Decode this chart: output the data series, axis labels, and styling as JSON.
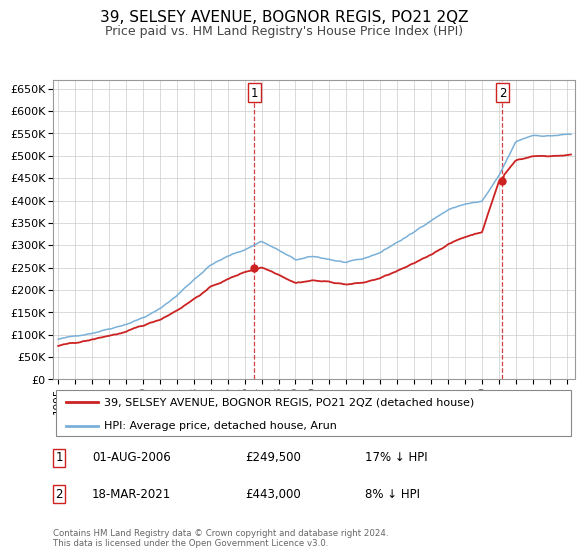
{
  "title": "39, SELSEY AVENUE, BOGNOR REGIS, PO21 2QZ",
  "subtitle": "Price paid vs. HM Land Registry's House Price Index (HPI)",
  "ylim": [
    0,
    670000
  ],
  "yticks": [
    0,
    50000,
    100000,
    150000,
    200000,
    250000,
    300000,
    350000,
    400000,
    450000,
    500000,
    550000,
    600000,
    650000
  ],
  "ytick_labels": [
    "£0",
    "£50K",
    "£100K",
    "£150K",
    "£200K",
    "£250K",
    "£300K",
    "£350K",
    "£400K",
    "£450K",
    "£500K",
    "£550K",
    "£600K",
    "£650K"
  ],
  "xlim_start": 1994.7,
  "xlim_end": 2025.5,
  "xticks": [
    1995,
    1996,
    1997,
    1998,
    1999,
    2000,
    2001,
    2002,
    2003,
    2004,
    2005,
    2006,
    2007,
    2008,
    2009,
    2010,
    2011,
    2012,
    2013,
    2014,
    2015,
    2016,
    2017,
    2018,
    2019,
    2020,
    2021,
    2022,
    2023,
    2024,
    2025
  ],
  "grid_color": "#cccccc",
  "hpi_color": "#7ab0d8",
  "price_color": "#cc2222",
  "sale1_x": 2006.58,
  "sale1_y": 249500,
  "sale1_label": "1",
  "sale1_date": "01-AUG-2006",
  "sale1_price": "£249,500",
  "sale1_hpi": "17% ↓ HPI",
  "sale2_x": 2021.21,
  "sale2_y": 443000,
  "sale2_label": "2",
  "sale2_date": "18-MAR-2021",
  "sale2_price": "£443,000",
  "sale2_hpi": "8% ↓ HPI",
  "legend_line1": "39, SELSEY AVENUE, BOGNOR REGIS, PO21 2QZ (detached house)",
  "legend_line2": "HPI: Average price, detached house, Arun",
  "footnote1": "Contains HM Land Registry data © Crown copyright and database right 2024.",
  "footnote2": "This data is licensed under the Open Government Licence v3.0.",
  "hpi_base_values": [
    90000,
    96000,
    105000,
    116000,
    128000,
    143000,
    162000,
    192000,
    228000,
    262000,
    280000,
    295000,
    315000,
    295000,
    272000,
    278000,
    272000,
    265000,
    270000,
    285000,
    308000,
    330000,
    358000,
    382000,
    395000,
    400000,
    455000,
    530000,
    545000,
    545000,
    548000
  ],
  "price_base_values": [
    75000,
    80000,
    87000,
    96000,
    104000,
    116000,
    130000,
    152000,
    178000,
    205000,
    222000,
    238000,
    249500,
    235000,
    218000,
    224000,
    220000,
    215000,
    218000,
    228000,
    243000,
    258000,
    278000,
    302000,
    318000,
    330000,
    443000,
    490000,
    500000,
    500000,
    503000
  ],
  "base_years": [
    1995,
    1996,
    1997,
    1998,
    1999,
    2000,
    2001,
    2002,
    2003,
    2004,
    2005,
    2006,
    2007,
    2008,
    2009,
    2010,
    2011,
    2012,
    2013,
    2014,
    2015,
    2016,
    2017,
    2018,
    2019,
    2020,
    2021,
    2022,
    2023,
    2024,
    2025
  ]
}
